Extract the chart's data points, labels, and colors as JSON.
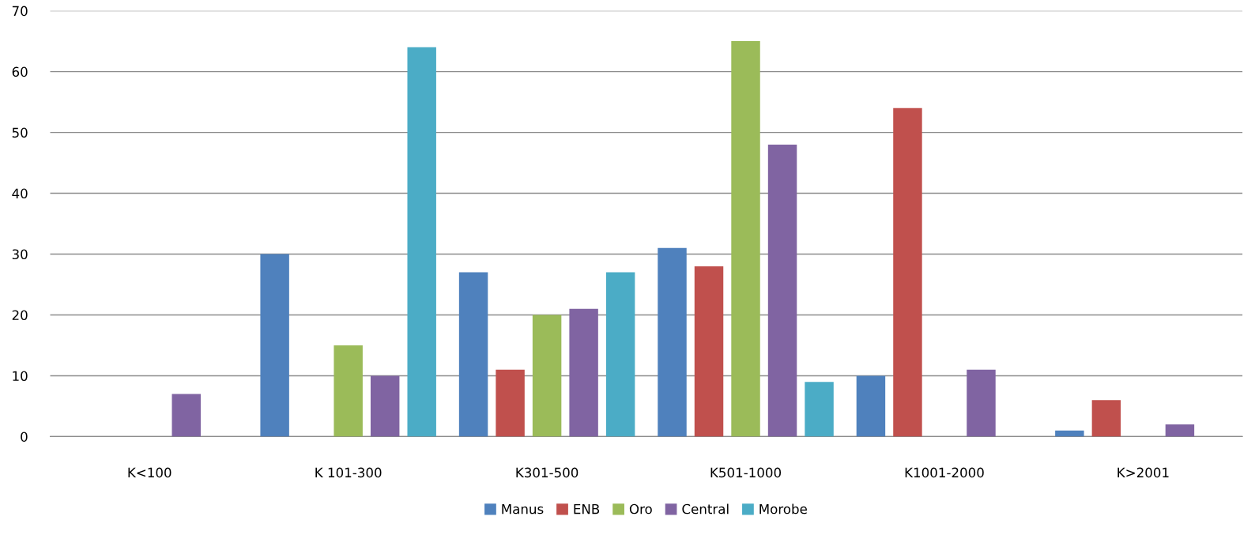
{
  "chart_data": {
    "type": "bar",
    "categories": [
      "K<100",
      "K 101-300",
      "K301-500",
      "K501-1000",
      "K1001-2000",
      "K>2001"
    ],
    "series": [
      {
        "name": "Manus",
        "color": "#4f81bd",
        "values": [
          0,
          30,
          27,
          31,
          10,
          1
        ]
      },
      {
        "name": "ENB",
        "color": "#c0504d",
        "values": [
          0,
          0,
          11,
          28,
          54,
          6
        ]
      },
      {
        "name": "Oro",
        "color": "#9bbb59",
        "values": [
          0,
          15,
          20,
          65,
          0,
          0
        ]
      },
      {
        "name": "Central",
        "color": "#8064a2",
        "values": [
          7,
          10,
          21,
          48,
          11,
          2
        ]
      },
      {
        "name": "Morobe",
        "color": "#4bacc6",
        "values": [
          0,
          64,
          27,
          9,
          0,
          0
        ]
      }
    ],
    "ylim": [
      0,
      70
    ],
    "yticks": [
      0,
      10,
      20,
      30,
      40,
      50,
      60,
      70
    ],
    "grid": "y",
    "legend": "bottom"
  }
}
